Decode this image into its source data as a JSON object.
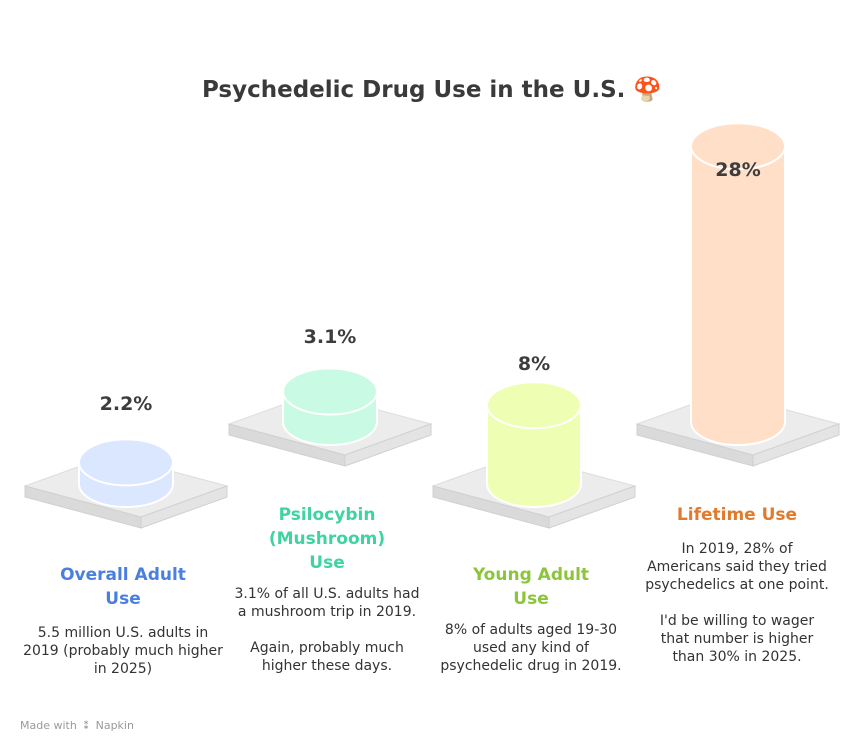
{
  "title": "Psychedelic Drug Use in the U.S. 🍄",
  "footer": {
    "made_with": "Made with",
    "brand": "Napkin",
    "icon": "napkin-logo-icon"
  },
  "colors": {
    "overall": "#4a7fe0",
    "psilocybin": "#3fd3a2",
    "young": "#8cc43b",
    "lifetime": "#e07a2e"
  },
  "items": [
    {
      "value_label": "2.2%",
      "category": "Overall Adult\nUse",
      "description": "5.5 million U.S. adults in 2019 (probably much higher in 2025)"
    },
    {
      "value_label": "3.1%",
      "category": "Psilocybin\n(Mushroom)\nUse",
      "description": "3.1% of all U.S. adults had a mushroom trip in 2019.\n\nAgain, probably much higher these days."
    },
    {
      "value_label": "8%",
      "category": "Young Adult\nUse",
      "description": "8% of adults aged 19-30 used any kind of psychedelic drug in 2019."
    },
    {
      "value_label": "28%",
      "category": "Lifetime Use",
      "description": "In 2019, 28% of Americans said they tried psychedelics at one point.\n\nI'd be willing to wager that number is higher than 30% in 2025."
    }
  ],
  "chart_data": {
    "type": "bar",
    "title": "Psychedelic Drug Use in the U.S. 🍄",
    "categories": [
      "Overall Adult Use",
      "Psilocybin (Mushroom) Use",
      "Young Adult Use",
      "Lifetime Use"
    ],
    "values": [
      2.2,
      3.1,
      8,
      28
    ],
    "unit": "%",
    "bar_colors": [
      "#dbe6ff",
      "#c9fbe4",
      "#eeffb3",
      "#ffdfc7"
    ],
    "legend": "none",
    "grid": false
  }
}
